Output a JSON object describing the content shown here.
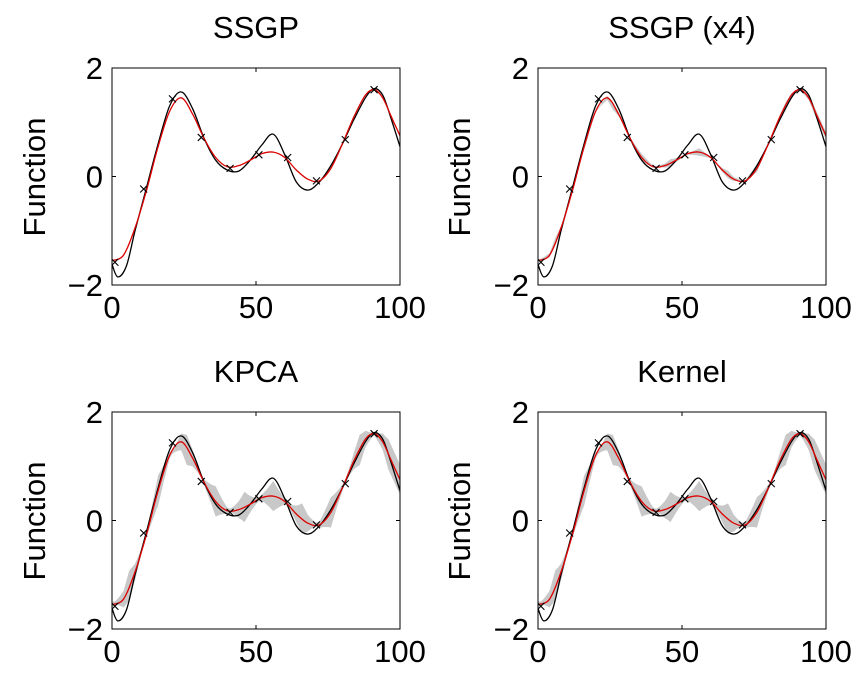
{
  "chart_data": [
    {
      "type": "line",
      "title": "SSGP",
      "xlabel": "",
      "ylabel": "Function",
      "xlim": [
        0,
        100
      ],
      "ylim": [
        -2,
        2
      ],
      "xticks": [
        "0",
        "50",
        "100"
      ],
      "yticks": [
        "−2",
        "0",
        "2"
      ],
      "grid": false,
      "band": "none",
      "series": [
        {
          "role": "true",
          "color": "#000000",
          "x": [
            0,
            2,
            5,
            8,
            12,
            16,
            20,
            24,
            28,
            32,
            36,
            40,
            44,
            48,
            52,
            56,
            60,
            64,
            68,
            72,
            76,
            80,
            84,
            88,
            91,
            94,
            97,
            100
          ],
          "y": [
            -1.62,
            -1.85,
            -1.65,
            -1.0,
            -0.2,
            0.6,
            1.3,
            1.56,
            1.25,
            0.7,
            0.3,
            0.12,
            0.1,
            0.3,
            0.58,
            0.78,
            0.4,
            -0.1,
            -0.25,
            -0.1,
            0.2,
            0.6,
            1.05,
            1.45,
            1.62,
            1.5,
            1.05,
            0.55
          ]
        },
        {
          "role": "prediction",
          "color": "#dd0000",
          "x": [
            0,
            4,
            8,
            12,
            16,
            20,
            24,
            28,
            32,
            36,
            40,
            44,
            48,
            52,
            56,
            60,
            64,
            68,
            72,
            76,
            80,
            84,
            88,
            91,
            94,
            97,
            100
          ],
          "y": [
            -1.55,
            -1.45,
            -0.95,
            -0.25,
            0.55,
            1.2,
            1.45,
            1.15,
            0.7,
            0.35,
            0.18,
            0.2,
            0.3,
            0.42,
            0.45,
            0.35,
            0.12,
            -0.05,
            -0.08,
            0.15,
            0.6,
            1.1,
            1.5,
            1.6,
            1.45,
            1.1,
            0.75
          ]
        }
      ],
      "observations": {
        "marker": "x",
        "x": [
          1,
          11,
          21,
          31,
          41,
          51,
          61,
          71,
          81,
          91
        ],
        "y": [
          -1.58,
          -0.23,
          1.43,
          0.72,
          0.15,
          0.4,
          0.35,
          -0.08,
          0.68,
          1.6
        ]
      }
    },
    {
      "type": "line",
      "title": "SSGP (x4)",
      "xlabel": "",
      "ylabel": "Function",
      "xlim": [
        0,
        100
      ],
      "ylim": [
        -2,
        2
      ],
      "xticks": [
        "0",
        "50",
        "100"
      ],
      "yticks": [
        "−2",
        "0",
        "2"
      ],
      "grid": false,
      "band": "narrow",
      "series": [
        {
          "role": "true",
          "color": "#000000",
          "x": [
            0,
            2,
            5,
            8,
            12,
            16,
            20,
            24,
            28,
            32,
            36,
            40,
            44,
            48,
            52,
            56,
            60,
            64,
            68,
            72,
            76,
            80,
            84,
            88,
            91,
            94,
            97,
            100
          ],
          "y": [
            -1.62,
            -1.85,
            -1.65,
            -1.0,
            -0.2,
            0.6,
            1.3,
            1.56,
            1.25,
            0.7,
            0.3,
            0.12,
            0.1,
            0.3,
            0.58,
            0.78,
            0.4,
            -0.1,
            -0.25,
            -0.1,
            0.2,
            0.6,
            1.05,
            1.45,
            1.62,
            1.5,
            1.05,
            0.55
          ]
        },
        {
          "role": "prediction",
          "color": "#dd0000",
          "x": [
            0,
            4,
            8,
            12,
            16,
            20,
            24,
            28,
            32,
            36,
            40,
            44,
            48,
            52,
            56,
            60,
            64,
            68,
            72,
            76,
            80,
            84,
            88,
            91,
            94,
            97,
            100
          ],
          "y": [
            -1.55,
            -1.45,
            -0.95,
            -0.25,
            0.55,
            1.2,
            1.45,
            1.15,
            0.7,
            0.35,
            0.18,
            0.2,
            0.3,
            0.42,
            0.45,
            0.35,
            0.12,
            -0.05,
            -0.08,
            0.15,
            0.6,
            1.1,
            1.5,
            1.6,
            1.45,
            1.1,
            0.75
          ]
        }
      ],
      "observations": {
        "marker": "x",
        "x": [
          1,
          11,
          21,
          31,
          41,
          51,
          61,
          71,
          81,
          91
        ],
        "y": [
          -1.58,
          -0.23,
          1.43,
          0.72,
          0.15,
          0.4,
          0.35,
          -0.08,
          0.68,
          1.6
        ]
      }
    },
    {
      "type": "line",
      "title": "KPCA",
      "xlabel": "",
      "ylabel": "Function",
      "xlim": [
        0,
        100
      ],
      "ylim": [
        -2,
        2
      ],
      "xticks": [
        "0",
        "50",
        "100"
      ],
      "yticks": [
        "−2",
        "0",
        "2"
      ],
      "grid": false,
      "band": "wide",
      "series": [
        {
          "role": "true",
          "color": "#000000",
          "x": [
            0,
            2,
            5,
            8,
            12,
            16,
            20,
            24,
            28,
            32,
            36,
            40,
            44,
            48,
            52,
            56,
            60,
            64,
            68,
            72,
            76,
            80,
            84,
            88,
            91,
            94,
            97,
            100
          ],
          "y": [
            -1.62,
            -1.85,
            -1.65,
            -1.0,
            -0.2,
            0.6,
            1.3,
            1.56,
            1.25,
            0.7,
            0.3,
            0.12,
            0.1,
            0.3,
            0.58,
            0.78,
            0.4,
            -0.1,
            -0.25,
            -0.1,
            0.2,
            0.6,
            1.05,
            1.45,
            1.62,
            1.5,
            1.05,
            0.55
          ]
        },
        {
          "role": "prediction",
          "color": "#dd0000",
          "x": [
            0,
            4,
            8,
            12,
            16,
            20,
            24,
            28,
            32,
            36,
            40,
            44,
            48,
            52,
            56,
            60,
            64,
            68,
            72,
            76,
            80,
            84,
            88,
            91,
            94,
            97,
            100
          ],
          "y": [
            -1.55,
            -1.45,
            -0.95,
            -0.25,
            0.55,
            1.2,
            1.45,
            1.15,
            0.7,
            0.35,
            0.18,
            0.2,
            0.3,
            0.42,
            0.45,
            0.35,
            0.12,
            -0.05,
            -0.08,
            0.15,
            0.6,
            1.1,
            1.5,
            1.6,
            1.45,
            1.1,
            0.75
          ]
        }
      ],
      "observations": {
        "marker": "x",
        "x": [
          1,
          11,
          21,
          31,
          41,
          51,
          61,
          71,
          81,
          91
        ],
        "y": [
          -1.58,
          -0.23,
          1.43,
          0.72,
          0.15,
          0.4,
          0.35,
          -0.08,
          0.68,
          1.6
        ]
      }
    },
    {
      "type": "line",
      "title": "Kernel",
      "xlabel": "",
      "ylabel": "Function",
      "xlim": [
        0,
        100
      ],
      "ylim": [
        -2,
        2
      ],
      "xticks": [
        "0",
        "50",
        "100"
      ],
      "yticks": [
        "−2",
        "0",
        "2"
      ],
      "grid": false,
      "band": "wide",
      "series": [
        {
          "role": "true",
          "color": "#000000",
          "x": [
            0,
            2,
            5,
            8,
            12,
            16,
            20,
            24,
            28,
            32,
            36,
            40,
            44,
            48,
            52,
            56,
            60,
            64,
            68,
            72,
            76,
            80,
            84,
            88,
            91,
            94,
            97,
            100
          ],
          "y": [
            -1.62,
            -1.85,
            -1.65,
            -1.0,
            -0.2,
            0.6,
            1.3,
            1.56,
            1.25,
            0.7,
            0.3,
            0.12,
            0.1,
            0.3,
            0.58,
            0.78,
            0.4,
            -0.1,
            -0.25,
            -0.1,
            0.2,
            0.6,
            1.05,
            1.45,
            1.62,
            1.5,
            1.05,
            0.55
          ]
        },
        {
          "role": "prediction",
          "color": "#dd0000",
          "x": [
            0,
            4,
            8,
            12,
            16,
            20,
            24,
            28,
            32,
            36,
            40,
            44,
            48,
            52,
            56,
            60,
            64,
            68,
            72,
            76,
            80,
            84,
            88,
            91,
            94,
            97,
            100
          ],
          "y": [
            -1.55,
            -1.45,
            -0.95,
            -0.25,
            0.55,
            1.2,
            1.45,
            1.15,
            0.7,
            0.35,
            0.18,
            0.2,
            0.3,
            0.42,
            0.45,
            0.35,
            0.12,
            -0.05,
            -0.08,
            0.15,
            0.6,
            1.1,
            1.5,
            1.6,
            1.45,
            1.1,
            0.75
          ]
        }
      ],
      "observations": {
        "marker": "x",
        "x": [
          1,
          11,
          21,
          31,
          41,
          51,
          61,
          71,
          81,
          91
        ],
        "y": [
          -1.58,
          -0.23,
          1.43,
          0.72,
          0.15,
          0.4,
          0.35,
          -0.08,
          0.68,
          1.6
        ]
      }
    }
  ],
  "colors": {
    "band": "#c8c8c8",
    "true_line": "#000000",
    "prediction_line": "#dd0000",
    "marker": "#000000"
  }
}
